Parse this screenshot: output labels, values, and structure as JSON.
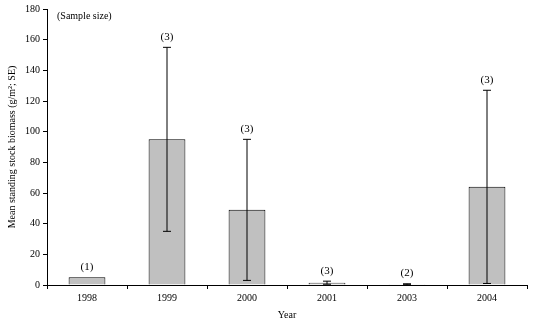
{
  "chart_data": {
    "type": "bar",
    "x_label": "Year",
    "y_label": "Mean standing stock biomass (g/m²; SE)",
    "annotation": "(Sample size)",
    "categories": [
      "1998",
      "1999",
      "2000",
      "2001",
      "2003",
      "2004"
    ],
    "values": [
      5,
      95,
      49,
      1.5,
      0.5,
      64
    ],
    "errors": [
      null,
      60,
      46,
      1,
      0.3,
      63
    ],
    "sample_sizes": [
      "(1)",
      "(3)",
      "(3)",
      "(3)",
      "(2)",
      "(3)"
    ],
    "color": "#c0c0c0",
    "ylim": [
      0,
      180
    ],
    "yticks": [
      0,
      20,
      40,
      60,
      80,
      100,
      120,
      140,
      160,
      180
    ],
    "grid": false
  }
}
